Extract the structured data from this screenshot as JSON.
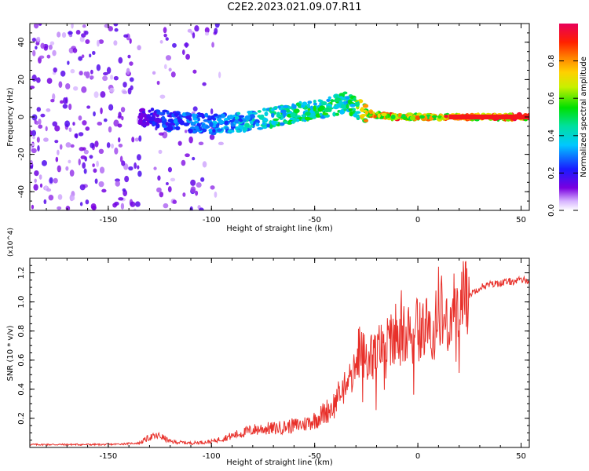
{
  "title": "C2E2.2023.021.09.07.R11",
  "colorbar_label": "Normalized spectral amplitude",
  "colorbar_ticks": [
    "0.0",
    "0.2",
    "0.4",
    "0.6",
    "0.8"
  ],
  "colors": {
    "snr_line": "#e8302a",
    "axis": "#000000"
  },
  "chart_data": [
    {
      "type": "heatmap",
      "xlabel": "Height of straight line (km)",
      "ylabel": "Frequency (Hz)",
      "xlim": [
        -188,
        54
      ],
      "ylim": [
        -50,
        50
      ],
      "xticks": [
        -150,
        -100,
        -50,
        0,
        50
      ],
      "yticks": [
        -40,
        -20,
        0,
        20,
        40
      ],
      "colormap": "rainbow (violet = 0.0, red/magenta = 1.0)",
      "colorbar_range": [
        0,
        1
      ],
      "description_points": {
        "x": [
          -185,
          -160,
          -140,
          -132,
          -120,
          -100,
          -90,
          -80,
          -70,
          -60,
          -50,
          -40,
          -35,
          -30,
          -25,
          -20,
          -10,
          0,
          10,
          20,
          30,
          40,
          50
        ],
        "peak_frequency": [
          0,
          0,
          0,
          0,
          -2,
          -4,
          -3,
          -2,
          0,
          2,
          4,
          6,
          8,
          5,
          2,
          1,
          0,
          0,
          0,
          0,
          0,
          0,
          0
        ],
        "peak_amplitude": [
          0.1,
          0.1,
          0.1,
          0.2,
          0.3,
          0.35,
          0.4,
          0.45,
          0.5,
          0.55,
          0.55,
          0.55,
          0.5,
          0.6,
          0.85,
          0.9,
          0.9,
          0.9,
          0.9,
          0.95,
          0.95,
          0.95,
          0.95
        ]
      }
    },
    {
      "type": "line",
      "xlabel": "Height of straight line (km)",
      "ylabel": "SNR (10 * v/v)",
      "y_multiplier": "(x10^4)",
      "xlim": [
        -188,
        54
      ],
      "ylim": [
        0,
        1.3
      ],
      "xticks": [
        -150,
        -100,
        -50,
        0,
        50
      ],
      "yticks": [
        0.2,
        0.4,
        0.6,
        0.8,
        1.0,
        1.2
      ],
      "series": [
        {
          "x": [
            -188,
            -170,
            -150,
            -135,
            -130,
            -125,
            -120,
            -110,
            -100,
            -95,
            -90,
            -85,
            -80,
            -75,
            -70,
            -65,
            -60,
            -55,
            -50,
            -45,
            -40,
            -35,
            -32,
            -30,
            -28,
            -25,
            -22,
            -20,
            -18,
            -15,
            -12,
            -10,
            -8,
            -5,
            -4,
            -2,
            0,
            2,
            5,
            8,
            10,
            12,
            15,
            18,
            20,
            25,
            30,
            35,
            40,
            45,
            50,
            54
          ],
          "y": [
            0.02,
            0.02,
            0.02,
            0.03,
            0.07,
            0.08,
            0.04,
            0.03,
            0.04,
            0.06,
            0.08,
            0.1,
            0.12,
            0.13,
            0.13,
            0.14,
            0.15,
            0.16,
            0.19,
            0.24,
            0.3,
            0.42,
            0.48,
            0.55,
            0.7,
            0.58,
            0.62,
            0.66,
            0.68,
            0.65,
            0.75,
            0.72,
            0.8,
            0.84,
            0.9,
            0.76,
            0.82,
            0.8,
            0.84,
            0.8,
            0.92,
            0.86,
            0.92,
            0.96,
            1.0,
            1.05,
            1.1,
            1.12,
            1.13,
            1.14,
            1.15,
            1.15
          ]
        }
      ]
    }
  ]
}
